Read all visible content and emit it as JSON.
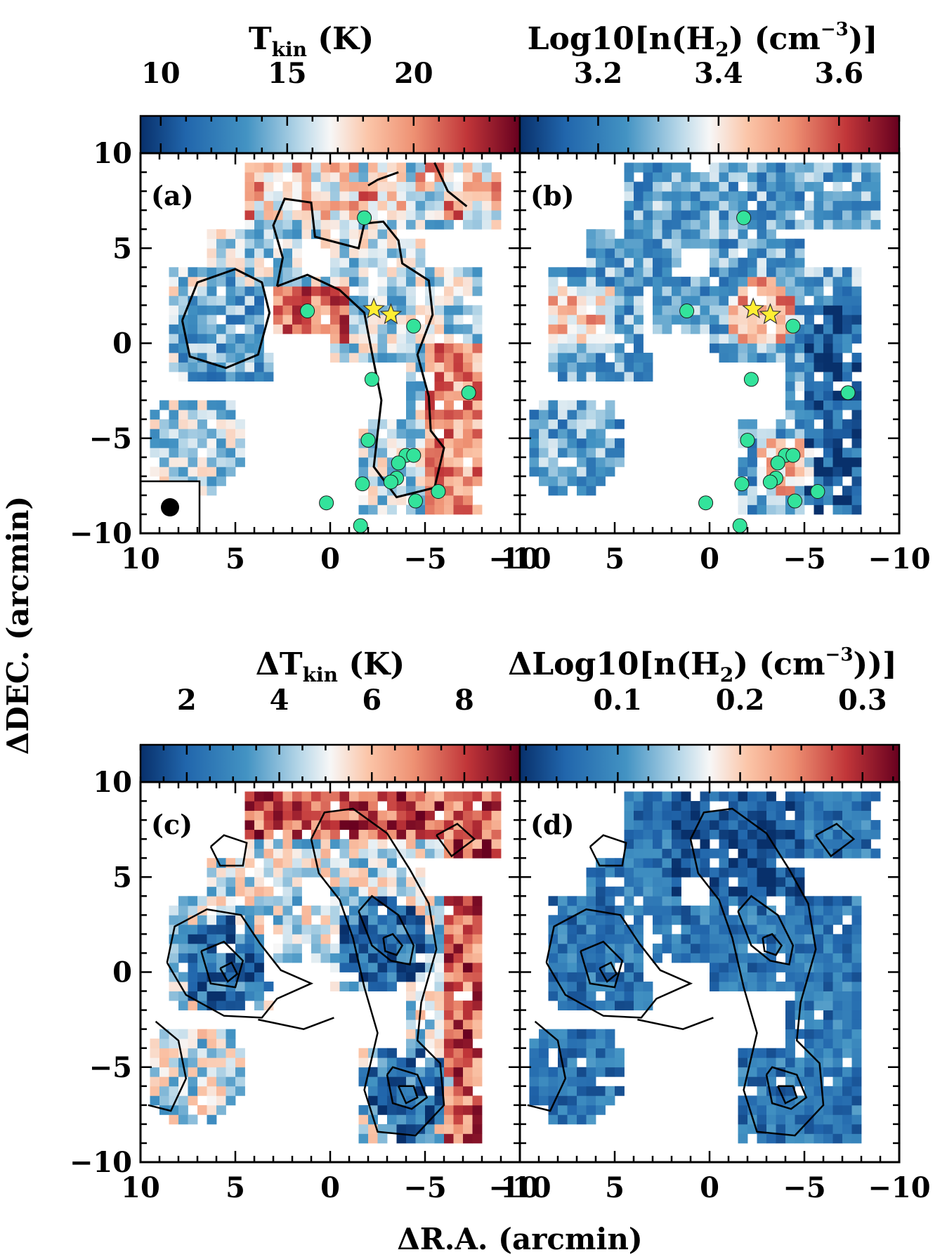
{
  "figure": {
    "ylabel": "ΔDEC. (arcmin)",
    "xlabel": "ΔR.A. (arcmin)"
  },
  "chart_data": [
    {
      "type": "heatmap",
      "panel_label": "(a)",
      "title_main": "T",
      "title_sub": "kin",
      "title_tail": " (K)",
      "colorbar": {
        "range": [
          9.2,
          24.2
        ],
        "ticks": [
          10,
          15,
          20
        ],
        "tick_labels": [
          "10",
          "15",
          "20"
        ],
        "minor_step": 1,
        "colormap": "RdBu_r"
      },
      "x_ticks": [
        "10",
        "5",
        "0",
        "−5",
        "−10"
      ],
      "y_ticks": [
        "10",
        "5",
        "0",
        "−5",
        "−10"
      ],
      "xlim": [
        10,
        -10
      ],
      "ylim": [
        -10,
        10
      ],
      "overlays": [
        "contours",
        "young_stellar_objects",
        "stars",
        "beam"
      ]
    },
    {
      "type": "heatmap",
      "panel_label": "(b)",
      "title_main": "Log10[n(H",
      "title_sub": "2",
      "title_tail": ") (cm",
      "title_sup": "−3",
      "title_end": ")]",
      "colorbar": {
        "range": [
          3.07,
          3.7
        ],
        "ticks": [
          3.2,
          3.4,
          3.6
        ],
        "tick_labels": [
          "3.2",
          "3.4",
          "3.6"
        ],
        "minor_step": 0.05,
        "colormap": "RdBu_r"
      },
      "x_ticks": [
        "10",
        "5",
        "0",
        "−5",
        "−10"
      ],
      "y_ticks": [
        "10",
        "5",
        "0",
        "−5",
        "−10"
      ],
      "xlim": [
        10,
        -10
      ],
      "ylim": [
        -10,
        10
      ],
      "overlays": [
        "young_stellar_objects",
        "stars"
      ]
    },
    {
      "type": "heatmap",
      "panel_label": "(c)",
      "title_main": "ΔT",
      "title_sub": "kin",
      "title_tail": " (K)",
      "colorbar": {
        "range": [
          1.0,
          9.2
        ],
        "ticks": [
          2,
          4,
          6,
          8
        ],
        "tick_labels": [
          "2",
          "4",
          "6",
          "8"
        ],
        "minor_step": 0.5,
        "colormap": "RdBu_r"
      },
      "x_ticks": [
        "10",
        "5",
        "0",
        "−5",
        "−10"
      ],
      "y_ticks": [
        "10",
        "5",
        "0",
        "−5",
        "−10"
      ],
      "xlim": [
        10,
        -10
      ],
      "ylim": [
        -10,
        10
      ],
      "overlays": [
        "column_density_contours"
      ]
    },
    {
      "type": "heatmap",
      "panel_label": "(d)",
      "title_main": "ΔLog10[n(H",
      "title_sub": "2",
      "title_tail": ") (cm",
      "title_sup": "−3",
      "title_end": "))]",
      "colorbar": {
        "range": [
          0.02,
          0.33
        ],
        "ticks": [
          0.1,
          0.2,
          0.3
        ],
        "tick_labels": [
          "0.1",
          "0.2",
          "0.3"
        ],
        "minor_step": 0.025,
        "colormap": "RdBu_r"
      },
      "x_ticks": [
        "10",
        "5",
        "0",
        "−5",
        "−10"
      ],
      "y_ticks": [
        "10",
        "5",
        "0",
        "−5",
        "−10"
      ],
      "xlim": [
        10,
        -10
      ],
      "ylim": [
        -10,
        10
      ],
      "overlays": [
        "column_density_contours"
      ]
    }
  ],
  "sources": {
    "young_stellar_objects": [
      [
        -1.8,
        6.6
      ],
      [
        1.2,
        1.7
      ],
      [
        -4.4,
        0.9
      ],
      [
        -2.2,
        -1.9
      ],
      [
        -7.3,
        -2.6
      ],
      [
        -2.0,
        -5.1
      ],
      [
        -4.0,
        -5.9
      ],
      [
        -4.4,
        -5.9
      ],
      [
        -3.6,
        -6.3
      ],
      [
        -1.7,
        -7.4
      ],
      [
        -3.5,
        -7.1
      ],
      [
        -3.2,
        -7.3
      ],
      [
        -5.7,
        -7.8
      ],
      [
        -4.5,
        -8.3
      ],
      [
        0.2,
        -8.4
      ],
      [
        -1.6,
        -9.6
      ]
    ],
    "stars": [
      [
        -2.3,
        1.8
      ],
      [
        -3.2,
        1.5
      ]
    ],
    "colors": {
      "yso": "#33e39b",
      "star": "#ffee33",
      "contour": "#000000"
    }
  }
}
